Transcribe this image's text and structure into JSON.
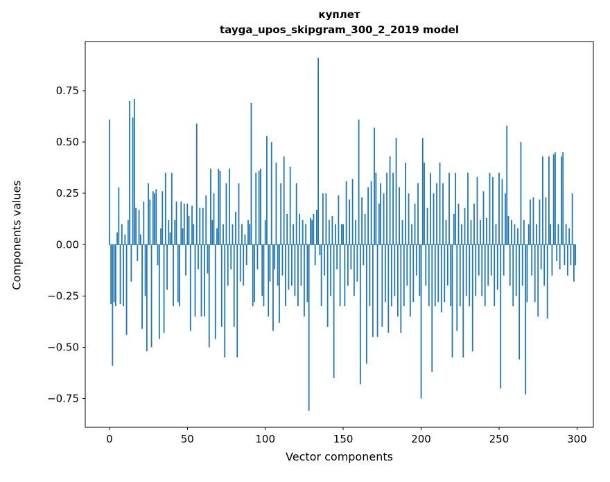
{
  "title": {
    "line1": "куплет",
    "line2": "tayga_upos_skipgram_300_2_2019 model"
  },
  "axes": {
    "xlabel": "Vector components",
    "ylabel": "Components values"
  },
  "chart_data": {
    "type": "bar",
    "title": "куплет",
    "subtitle": "tayga_upos_skipgram_300_2_2019 model",
    "xlabel": "Vector components",
    "ylabel": "Components values",
    "xlim": [
      -15.5,
      310.5
    ],
    "ylim": [
      -0.89,
      0.99
    ],
    "xticks": [
      0,
      50,
      100,
      150,
      200,
      250,
      300
    ],
    "xtick_labels": [
      "0",
      "50",
      "100",
      "150",
      "200",
      "250",
      "300"
    ],
    "yticks": [
      -0.75,
      -0.5,
      -0.25,
      0,
      0.25,
      0.5,
      0.75
    ],
    "ytick_labels": [
      "−0.75",
      "−0.50",
      "−0.25",
      "0.00",
      "0.25",
      "0.50",
      "0.75"
    ],
    "bar_color": "#1f77b4",
    "bar_width": 0.8,
    "grid": false,
    "legend": null,
    "values": [
      0.61,
      -0.29,
      -0.59,
      -0.28,
      -0.3,
      0.06,
      0.28,
      -0.29,
      0.1,
      -0.3,
      0.05,
      -0.44,
      0.12,
      0.7,
      -0.18,
      0.62,
      0.71,
      0.18,
      -0.08,
      0.17,
      0.05,
      -0.41,
      0.21,
      -0.25,
      -0.52,
      0.3,
      0.22,
      -0.5,
      0.26,
      0.25,
      0.27,
      -0.1,
      -0.46,
      0.08,
      0.26,
      -0.43,
      0.35,
      -0.22,
      0.12,
      0.06,
      0.35,
      -0.3,
      0.12,
      0.21,
      -0.28,
      -0.3,
      0.21,
      0.08,
      0.2,
      -0.15,
      0.2,
      0.14,
      -0.42,
      0.19,
      0.1,
      -0.35,
      0.59,
      -0.12,
      0.18,
      -0.35,
      0.18,
      -0.35,
      0.24,
      -0.14,
      -0.5,
      0.37,
      0.12,
      0.25,
      -0.46,
      0.08,
      0.37,
      0.36,
      -0.4,
      0.1,
      -0.55,
      0.3,
      -0.2,
      0.37,
      -0.12,
      0.1,
      -0.4,
      0.16,
      -0.55,
      0.3,
      -0.18,
      0.1,
      -0.2,
      0.05,
      -0.1,
      0.12,
      0.1,
      0.69,
      -0.3,
      -0.28,
      0.35,
      -0.12,
      0.36,
      0.37,
      -0.25,
      -0.3,
      0.12,
      0.53,
      -0.35,
      -0.18,
      0.5,
      -0.42,
      -0.12,
      0.4,
      -0.2,
      -0.38,
      0.3,
      -0.15,
      0.43,
      -0.3,
      0.15,
      -0.22,
      0.38,
      -0.2,
      0.1,
      -0.25,
      0.3,
      -0.3,
      0.15,
      -0.2,
      0.12,
      -0.35,
      0.1,
      -0.28,
      -0.81,
      0.13,
      0.12,
      0.15,
      -0.1,
      0.17,
      0.91,
      -0.05,
      -0.3,
      0.25,
      -0.15,
      0.25,
      -0.4,
      0.12,
      -0.25,
      0.14,
      -0.65,
      0.1,
      -0.12,
      0.24,
      -0.3,
      0.1,
      0.1,
      -0.3,
      0.31,
      -0.2,
      0.22,
      -0.12,
      0.32,
      -0.25,
      0.12,
      -0.18,
      0.61,
      -0.68,
      0.23,
      -0.1,
      0.15,
      -0.58,
      0.28,
      -0.3,
      0.31,
      -0.45,
      0.57,
      0.35,
      -0.45,
      0.2,
      0.3,
      -0.4,
      0.25,
      -0.28,
      0.35,
      -0.43,
      0.43,
      -0.3,
      0.35,
      -0.25,
      0.52,
      -0.35,
      0.28,
      -0.43,
      0.12,
      -0.3,
      0.4,
      -0.2,
      0.25,
      -0.35,
      0.1,
      -0.28,
      0.2,
      -0.15,
      0.3,
      -0.25,
      -0.75,
      0.52,
      0.4,
      -0.2,
      0.18,
      -0.3,
      0.35,
      -0.62,
      0.25,
      -0.3,
      0.3,
      -0.28,
      0.4,
      -0.33,
      0.3,
      -0.28,
      0.12,
      -0.2,
      0.35,
      -0.3,
      -0.55,
      0.15,
      0.35,
      -0.42,
      0.2,
      -0.3,
      0.1,
      -0.55,
      0.18,
      -0.25,
      0.35,
      -0.3,
      0.12,
      -0.52,
      0.2,
      -0.25,
      0.33,
      -0.15,
      0.12,
      -0.25,
      0.26,
      -0.3,
      0.13,
      -0.2,
      0.35,
      -0.15,
      0.33,
      -0.3,
      0.1,
      -0.22,
      0.35,
      -0.7,
      0.32,
      -0.15,
      0.25,
      0.58,
      0.14,
      -0.2,
      0.12,
      -0.3,
      0.1,
      -0.25,
      0.08,
      -0.56,
      0.5,
      -0.2,
      0.12,
      -0.73,
      -0.28,
      0.1,
      0.22,
      -0.15,
      0.23,
      -0.28,
      0.1,
      -0.35,
      0.22,
      -0.12,
      0.43,
      -0.2,
      0.23,
      -0.36,
      0.43,
      0.1,
      -0.15,
      0.44,
      0.45,
      -0.08,
      0.1,
      -0.12,
      0.43,
      0.45,
      -0.1,
      0.1,
      -0.15,
      0.08,
      -0.1,
      0.25,
      -0.18,
      -0.1
    ]
  }
}
